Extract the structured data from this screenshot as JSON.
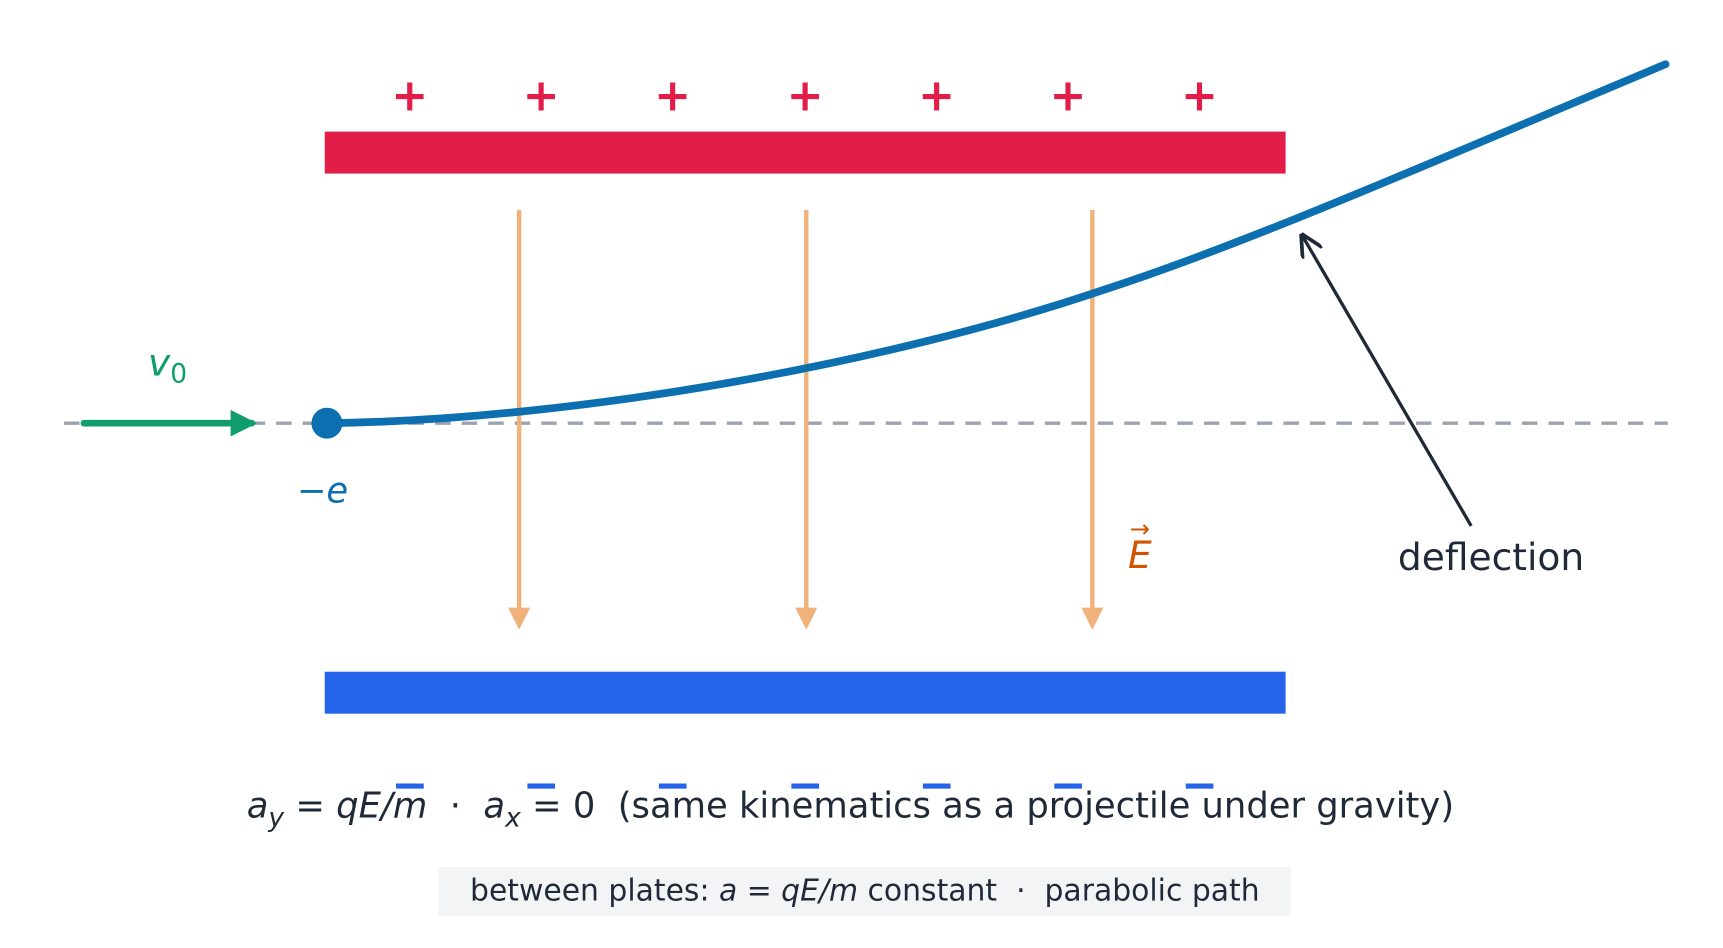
{
  "top_plate": {
    "signs": [
      "+",
      "+",
      "+",
      "+",
      "+",
      "+",
      "+"
    ]
  },
  "bottom_plate": {
    "signs": [
      "−",
      "−",
      "−",
      "−",
      "−",
      "−",
      "−"
    ]
  },
  "labels": {
    "velocity": "v",
    "velocity_subscript": "0",
    "charge": "−e",
    "field": "E",
    "field_arrow": "→",
    "deflection": "deflection"
  },
  "equation": [
    "a",
    "y",
    " = ",
    "qE/m",
    "  ·  ",
    "a",
    "x",
    " = 0  (same kinematics as a projectile under gravity)"
  ],
  "caption": [
    "between plates: ",
    "a",
    " = ",
    "qE/m",
    " constant  ·  parabolic path"
  ]
}
